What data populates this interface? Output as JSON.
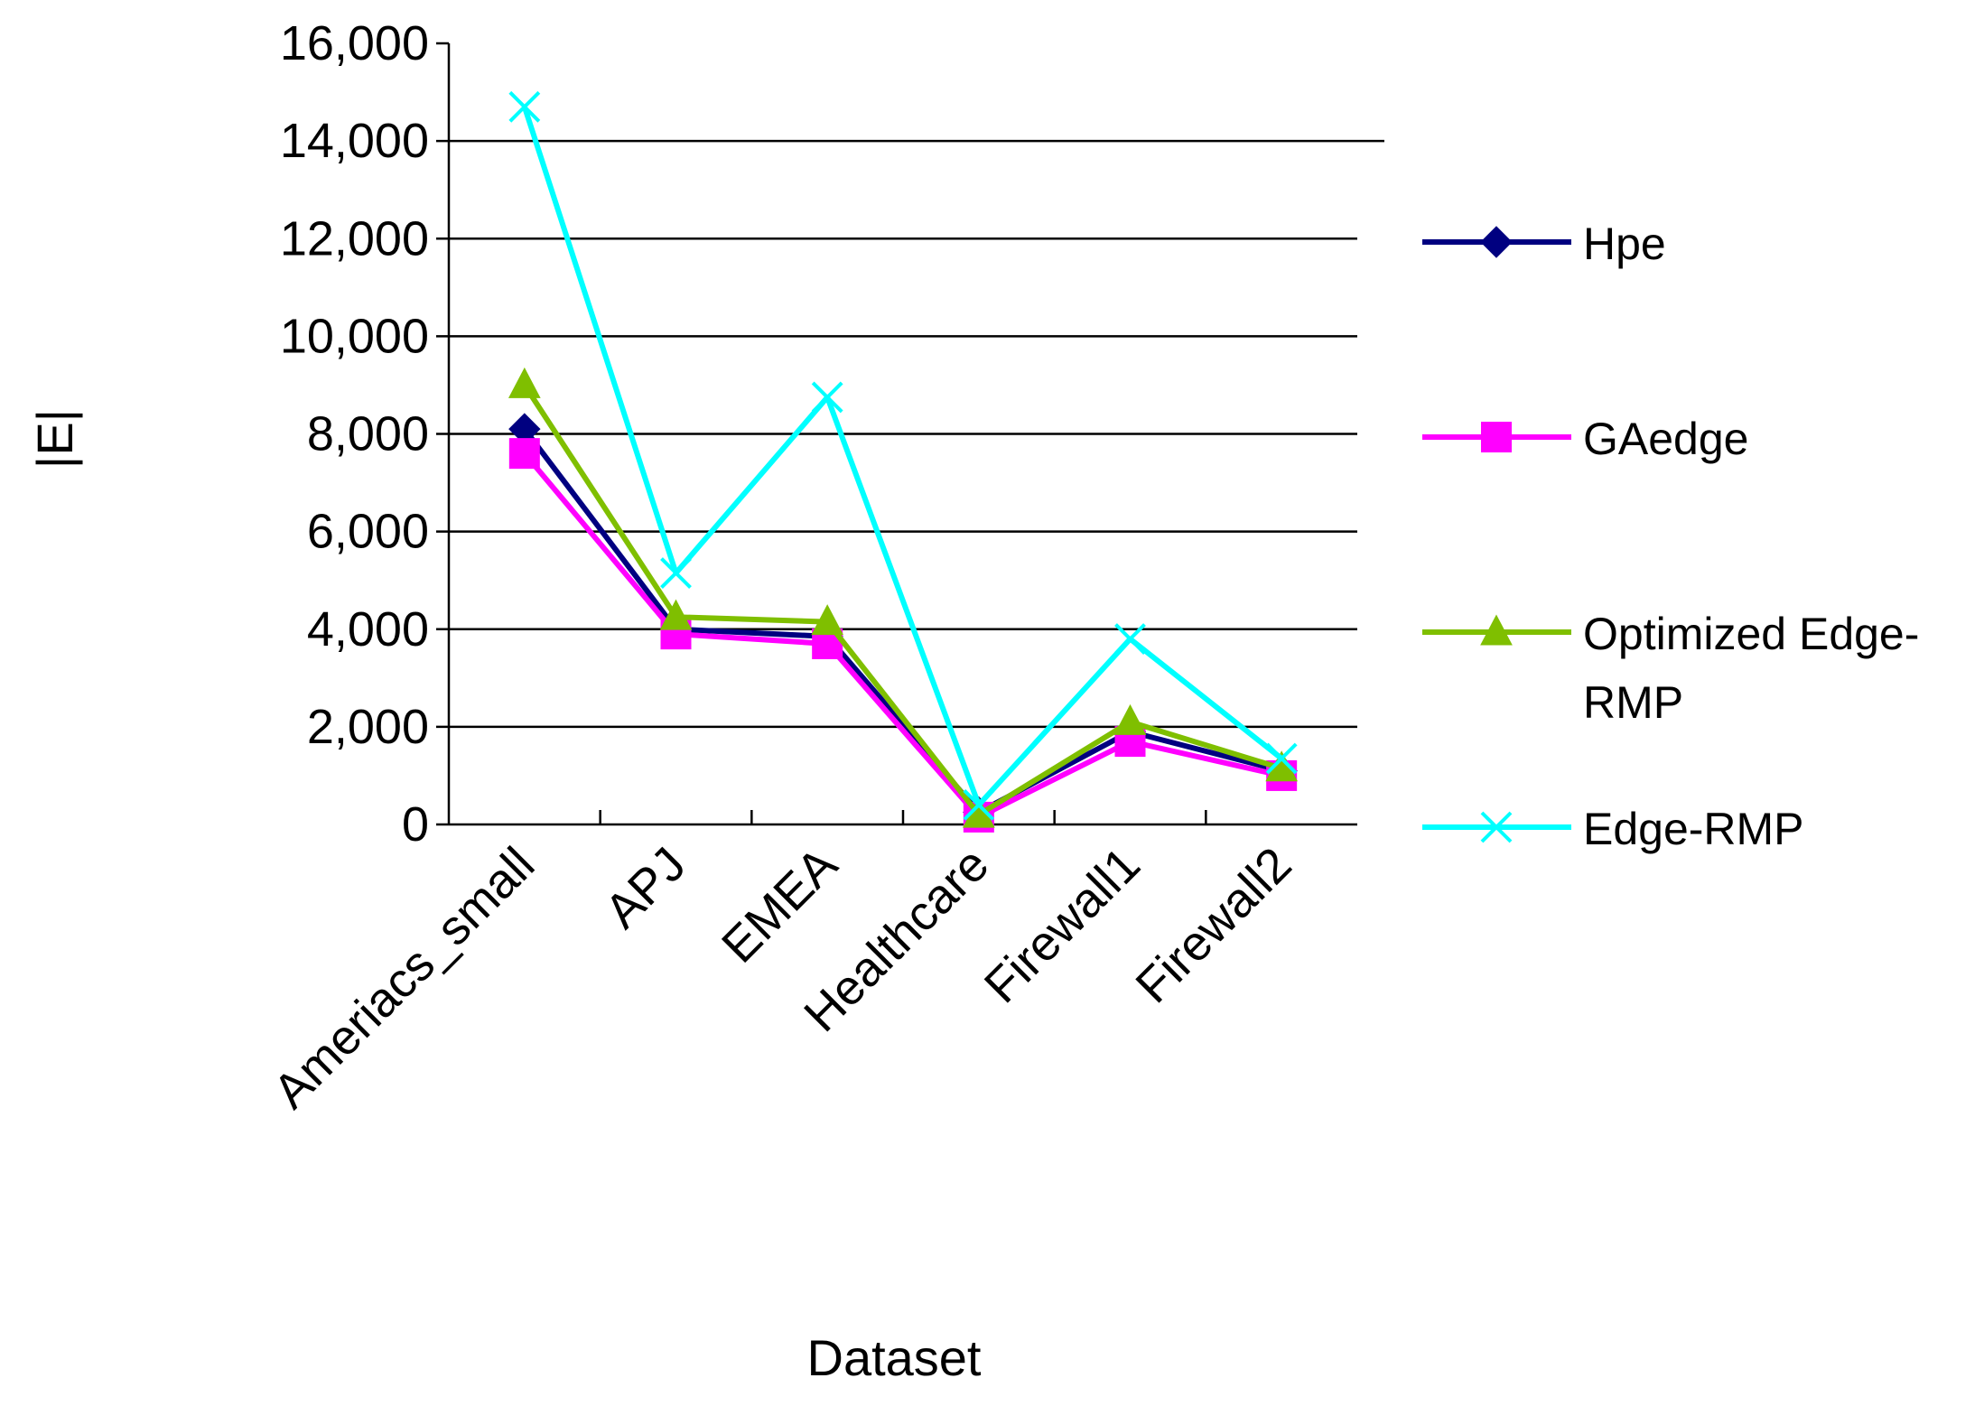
{
  "chart_data": {
    "type": "line",
    "title": "",
    "xlabel": "Dataset",
    "ylabel": "|E|",
    "categories": [
      "Ameriacs_small",
      "APJ",
      "EMEA",
      "Healthcare",
      "Firewall1",
      "Firewall2"
    ],
    "ylim": [
      0,
      16000
    ],
    "yticks": [
      0,
      2000,
      4000,
      6000,
      8000,
      10000,
      12000,
      14000,
      16000
    ],
    "ytick_labels": [
      "0",
      "2,000",
      "4,000",
      "6,000",
      "8,000",
      "10,000",
      "12,000",
      "14,000",
      "16,000"
    ],
    "grid": "horizontal",
    "legend_position": "right",
    "series": [
      {
        "name": "Hpe",
        "values": [
          8100,
          4000,
          3850,
          250,
          1900,
          1100
        ],
        "color": "#000080",
        "marker": "diamond-icon"
      },
      {
        "name": "GAedge",
        "values": [
          7600,
          3900,
          3700,
          150,
          1700,
          1000
        ],
        "color": "#ff00ff",
        "marker": "square-icon"
      },
      {
        "name": "Optimized Edge-RMP",
        "name_lines": [
          " Optimized Edge-",
          "RMP"
        ],
        "values": [
          9000,
          4250,
          4150,
          200,
          2100,
          1150
        ],
        "color": "#7fbf00",
        "marker": "triangle-icon"
      },
      {
        "name": "Edge-RMP",
        "values": [
          14700,
          5150,
          8750,
          400,
          3800,
          1350
        ],
        "color": "#00ffff",
        "marker": "x-icon"
      }
    ]
  }
}
